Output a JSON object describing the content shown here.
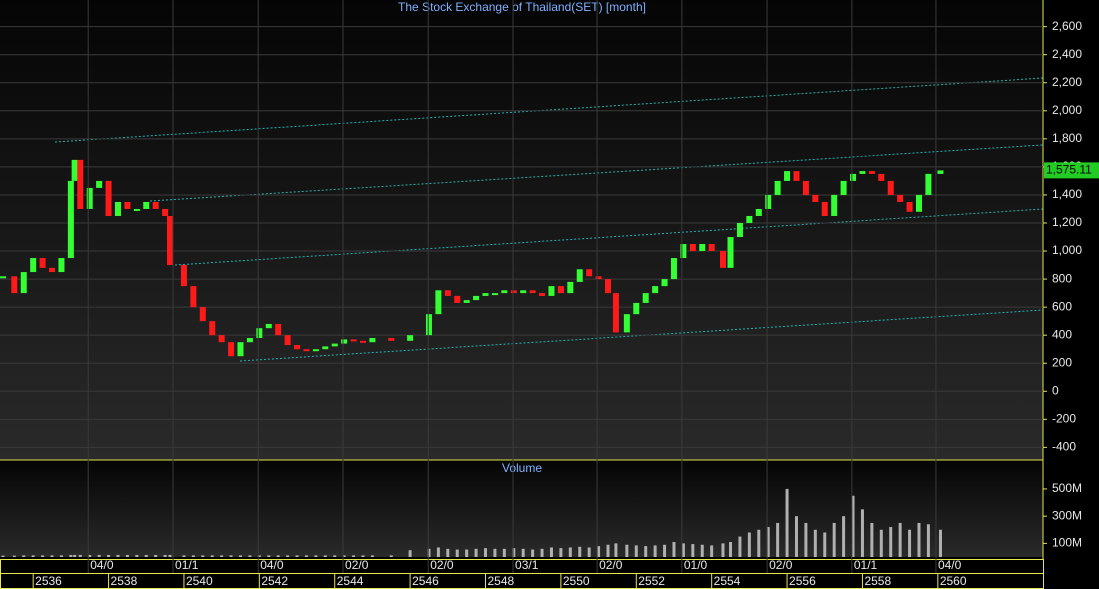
{
  "chart_data": [
    {
      "type": "candlestick",
      "title": "The Stock Exchange of Thailand(SET) [month]",
      "x": [
        2535.2,
        2535.5,
        2535.75,
        2536.0,
        2536.25,
        2536.5,
        2536.75,
        2537.0,
        2537.1,
        2537.25,
        2537.5,
        2537.75,
        2538.0,
        2538.25,
        2538.5,
        2538.75,
        2539.0,
        2539.25,
        2539.5,
        2539.63,
        2540.0,
        2540.25,
        2540.5,
        2540.75,
        2541.0,
        2541.25,
        2541.5,
        2541.75,
        2542.0,
        2542.25,
        2542.5,
        2542.75,
        2543.0,
        2543.25,
        2543.5,
        2543.75,
        2544.0,
        2544.25,
        2544.5,
        2544.75,
        2545.0,
        2545.5,
        2546.0,
        2546.5,
        2546.75,
        2547.0,
        2547.25,
        2547.5,
        2547.75,
        2548.0,
        2548.25,
        2548.5,
        2548.75,
        2549.0,
        2549.25,
        2549.5,
        2549.75,
        2550.0,
        2550.25,
        2550.5,
        2550.75,
        2551.0,
        2551.25,
        2551.46,
        2551.75,
        2552.0,
        2552.25,
        2552.5,
        2552.75,
        2553.0,
        2553.25,
        2553.5,
        2553.75,
        2554.0,
        2554.3,
        2554.5,
        2554.75,
        2555.0,
        2555.25,
        2555.5,
        2555.75,
        2556.0,
        2556.25,
        2556.5,
        2556.75,
        2557.0,
        2557.25,
        2557.5,
        2557.75,
        2558.0,
        2558.25,
        2558.5,
        2558.75,
        2559.0,
        2559.25,
        2559.5,
        2559.75,
        2560.07
      ],
      "values": [
        820,
        700,
        850,
        950,
        880,
        850,
        950,
        1500,
        1650,
        1300,
        1450,
        1500,
        1250,
        1350,
        1300,
        1300,
        1350,
        1300,
        1250,
        900,
        750,
        600,
        500,
        400,
        350,
        250,
        350,
        380,
        450,
        480,
        400,
        330,
        300,
        290,
        300,
        320,
        340,
        370,
        360,
        350,
        380,
        360,
        400,
        550,
        720,
        680,
        630,
        650,
        680,
        700,
        700,
        720,
        700,
        720,
        700,
        680,
        750,
        700,
        780,
        870,
        820,
        800,
        700,
        420,
        550,
        630,
        700,
        750,
        800,
        950,
        1050,
        1000,
        1050,
        1000,
        880,
        1100,
        1200,
        1250,
        1300,
        1400,
        1500,
        1570,
        1500,
        1400,
        1350,
        1250,
        1400,
        1500,
        1550,
        1570,
        1550,
        1500,
        1400,
        1350,
        1280,
        1400,
        1550,
        1575
      ],
      "up_color": "#33ff33",
      "down_color": "#ff1a1a",
      "last_value": {
        "value": 1575.11,
        "label": "1,575.11"
      },
      "xlim": [
        2535.12,
        2562.79
      ],
      "ylim": [
        -490,
        2790
      ],
      "yticks": [
        -400,
        -200,
        0,
        200,
        400,
        600,
        800,
        {
          "value": 1000,
          "label": "1,000"
        },
        {
          "value": 1200,
          "label": "1,200"
        },
        {
          "value": 1400,
          "label": "1,400"
        },
        {
          "value": 1600,
          "label": "1,600"
        },
        {
          "value": 1800,
          "label": "1,800"
        },
        {
          "value": 2000,
          "label": "2,000"
        },
        {
          "value": 2200,
          "label": "2,200"
        },
        {
          "value": 2400,
          "label": "2,400"
        },
        {
          "value": 2600,
          "label": "2,600"
        }
      ],
      "grid": true
    },
    {
      "type": "bar",
      "title": "Volume",
      "color": "#b0b0b0",
      "values": [
        10,
        10,
        12,
        12,
        12,
        12,
        12,
        15,
        15,
        15,
        15,
        15,
        15,
        15,
        15,
        15,
        15,
        15,
        15,
        15,
        12,
        12,
        12,
        12,
        12,
        12,
        12,
        12,
        12,
        12,
        12,
        12,
        12,
        12,
        12,
        12,
        12,
        12,
        12,
        12,
        12,
        12,
        50,
        60,
        70,
        60,
        55,
        55,
        60,
        65,
        60,
        60,
        65,
        60,
        55,
        60,
        70,
        65,
        70,
        75,
        70,
        80,
        90,
        100,
        90,
        85,
        80,
        85,
        90,
        110,
        100,
        95,
        90,
        85,
        100,
        110,
        150,
        180,
        200,
        220,
        250,
        500,
        300,
        250,
        200,
        180,
        250,
        300,
        450,
        350,
        250,
        200,
        220,
        250,
        200,
        250,
        240,
        200
      ],
      "xlim": [
        2535.12,
        2562.79
      ],
      "ylim": [
        0,
        705
      ],
      "yticks": [
        {
          "value": 100,
          "label": "100M"
        },
        {
          "value": 300,
          "label": "300M"
        },
        {
          "value": 500,
          "label": "500M"
        }
      ],
      "xticks": [
        2536,
        2538,
        2540,
        2542,
        2544,
        2546,
        2548,
        2550,
        2552,
        2554,
        2556,
        2558,
        2560
      ],
      "period_ticks": [
        {
          "value": 2537.46,
          "label": "04/0"
        },
        {
          "value": 2539.71,
          "label": "01/1"
        },
        {
          "value": 2541.97,
          "label": "04/0"
        },
        {
          "value": 2544.22,
          "label": "02/0"
        },
        {
          "value": 2546.48,
          "label": "02/0"
        },
        {
          "value": 2548.73,
          "label": "03/1"
        },
        {
          "value": 2550.96,
          "label": "02/0"
        },
        {
          "value": 2553.21,
          "label": "01/0"
        },
        {
          "value": 2555.47,
          "label": "02/0"
        },
        {
          "value": 2557.72,
          "label": "01/1"
        },
        {
          "value": 2559.95,
          "label": "04/0"
        }
      ]
    }
  ]
}
